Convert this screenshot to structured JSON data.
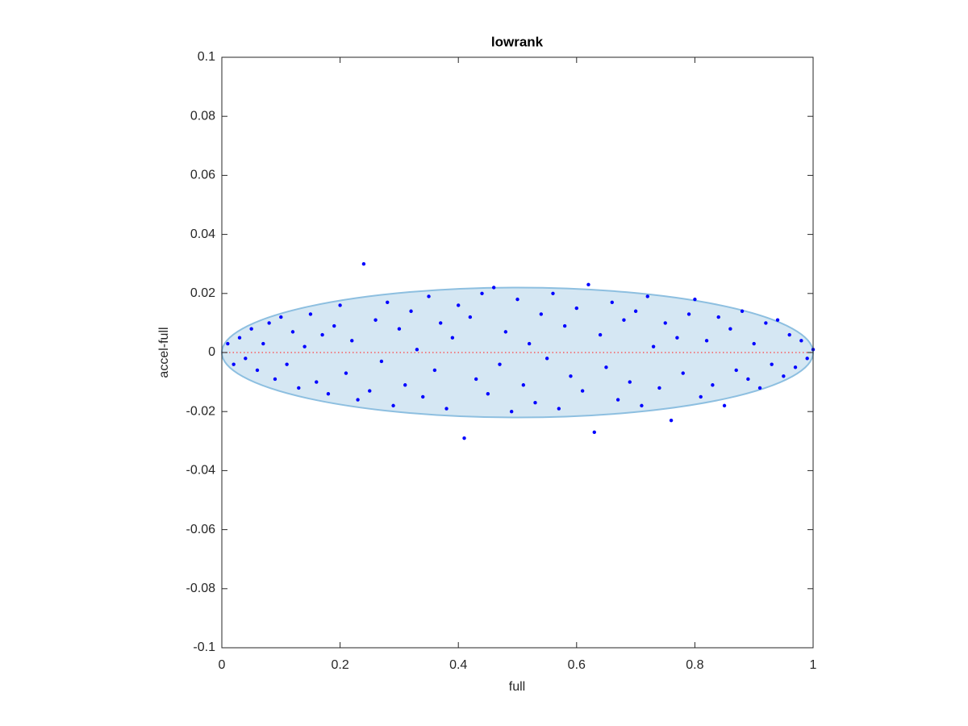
{
  "chart_data": {
    "type": "scatter",
    "title": "lowrank",
    "xlabel": "full",
    "ylabel": "accel-full",
    "color": "#0000ff",
    "x": [
      0.01,
      0.02,
      0.03,
      0.04,
      0.05,
      0.06,
      0.07,
      0.08,
      0.09,
      0.1,
      0.11,
      0.12,
      0.13,
      0.14,
      0.15,
      0.16,
      0.17,
      0.18,
      0.19,
      0.2,
      0.21,
      0.22,
      0.23,
      0.24,
      0.25,
      0.26,
      0.27,
      0.28,
      0.29,
      0.3,
      0.31,
      0.32,
      0.33,
      0.34,
      0.35,
      0.36,
      0.37,
      0.38,
      0.39,
      0.4,
      0.41,
      0.42,
      0.43,
      0.44,
      0.45,
      0.46,
      0.47,
      0.48,
      0.49,
      0.5,
      0.51,
      0.52,
      0.53,
      0.54,
      0.55,
      0.56,
      0.57,
      0.58,
      0.59,
      0.6,
      0.61,
      0.62,
      0.63,
      0.64,
      0.65,
      0.66,
      0.67,
      0.68,
      0.69,
      0.7,
      0.71,
      0.72,
      0.73,
      0.74,
      0.75,
      0.76,
      0.77,
      0.78,
      0.79,
      0.8,
      0.81,
      0.82,
      0.83,
      0.84,
      0.85,
      0.86,
      0.87,
      0.88,
      0.89,
      0.9,
      0.91,
      0.92,
      0.93,
      0.94,
      0.95,
      0.96,
      0.97,
      0.98,
      0.99,
      1
    ],
    "values": [
      0.003,
      -0.004,
      0.005,
      -0.002,
      0.008,
      -0.006,
      0.003,
      0.01,
      -0.009,
      0.012,
      -0.004,
      0.007,
      -0.012,
      0.002,
      0.013,
      -0.01,
      0.006,
      -0.014,
      0.009,
      0.016,
      -0.007,
      0.004,
      -0.016,
      0.03,
      -0.013,
      0.011,
      -0.003,
      0.017,
      -0.018,
      0.008,
      -0.011,
      0.014,
      0.001,
      -0.015,
      0.019,
      -0.006,
      0.01,
      -0.019,
      0.005,
      0.016,
      -0.029,
      0.012,
      -0.009,
      0.02,
      -0.014,
      0.022,
      -0.004,
      0.007,
      -0.02,
      0.018,
      -0.011,
      0.003,
      -0.017,
      0.013,
      -0.002,
      0.02,
      -0.019,
      0.009,
      -0.008,
      0.015,
      -0.013,
      0.023,
      -0.027,
      0.006,
      -0.005,
      0.017,
      -0.016,
      0.011,
      -0.01,
      0.014,
      -0.018,
      0.019,
      0.002,
      -0.012,
      0.01,
      -0.023,
      0.005,
      -0.007,
      0.013,
      0.018,
      -0.015,
      0.004,
      -0.011,
      0.012,
      -0.018,
      0.008,
      -0.006,
      0.014,
      -0.009,
      0.003,
      -0.012,
      0.01,
      -0.004,
      0.011,
      -0.008,
      0.006,
      -0.005,
      0.004,
      -0.002,
      0.001
    ],
    "ellipse": {
      "center": [
        0.5,
        0
      ],
      "radii": [
        0.5,
        0.022
      ],
      "fill": "#d5e7f3",
      "edge": "#8dbfe0"
    },
    "hline": {
      "value": 0,
      "color": "#ff4040"
    },
    "xlim": [
      0,
      1
    ],
    "ylim": [
      -0.1,
      0.1
    ],
    "xticks": [
      0,
      0.2,
      0.4,
      0.6,
      0.8,
      1
    ],
    "yticks": [
      -0.1,
      -0.08,
      -0.06,
      -0.04,
      -0.02,
      0,
      0.02,
      0.04,
      0.06,
      0.08,
      0.1
    ]
  }
}
